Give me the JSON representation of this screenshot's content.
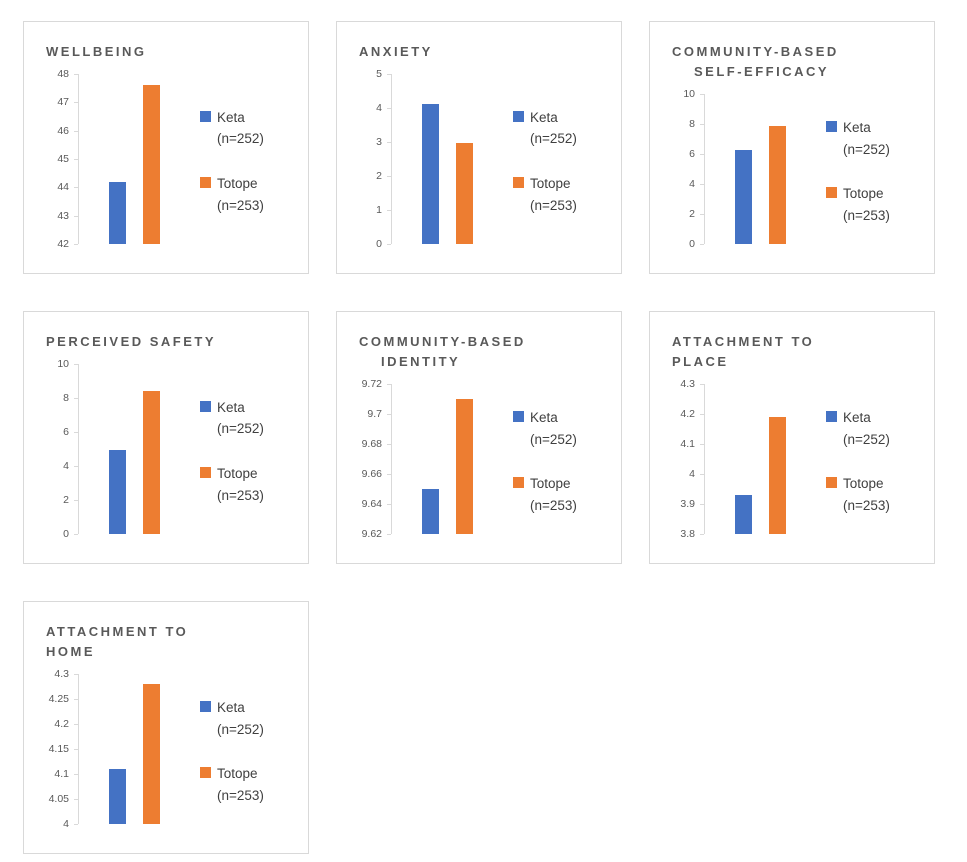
{
  "colors": {
    "keta_bar": "#4472C4",
    "totope_bar": "#ED7D31",
    "title_text": "#595959",
    "axis_text": "#595959",
    "axis_line": "#D9D9D9",
    "panel_border": "#D9D9D9",
    "legend_text": "#404040"
  },
  "legend": {
    "position": "right",
    "keta_name": "Keta",
    "keta_n": "(n=252)",
    "totope_name": "Totope",
    "totope_n": "(n=253)"
  },
  "chart_data": [
    {
      "id": "wellbeing",
      "type": "bar",
      "title": "WELLBEING",
      "title_lines": [
        "WELLBEING"
      ],
      "categories": [
        "Keta (n=252)",
        "Totope (n=253)"
      ],
      "values": [
        44.2,
        47.6
      ],
      "ylim": [
        42,
        48
      ],
      "yticks": [
        "48",
        "47",
        "46",
        "45",
        "44",
        "43",
        "42"
      ],
      "xlabel": "",
      "ylabel": "",
      "grid": false,
      "legend_position": "right"
    },
    {
      "id": "anxiety",
      "type": "bar",
      "title": "ANXIETY",
      "title_lines": [
        "ANXIETY"
      ],
      "categories": [
        "Keta (n=252)",
        "Totope (n=253)"
      ],
      "values": [
        4.13,
        2.97
      ],
      "ylim": [
        0,
        5
      ],
      "yticks": [
        "5",
        "4",
        "3",
        "2",
        "1",
        "0"
      ],
      "xlabel": "",
      "ylabel": "",
      "grid": false,
      "legend_position": "right"
    },
    {
      "id": "community-based-self-efficacy",
      "type": "bar",
      "title": "COMMUNITY-BASED SELF-EFFICACY",
      "title_lines": [
        "COMMUNITY-BASED",
        "SELF-EFFICACY"
      ],
      "title_indent2": true,
      "categories": [
        "Keta (n=252)",
        "Totope (n=253)"
      ],
      "values": [
        6.3,
        7.9
      ],
      "ylim": [
        0,
        10
      ],
      "yticks": [
        "10",
        "8",
        "6",
        "4",
        "2",
        "0"
      ],
      "xlabel": "",
      "ylabel": "",
      "grid": false,
      "legend_position": "right"
    },
    {
      "id": "perceived-safety",
      "type": "bar",
      "title": "PERCEIVED SAFETY",
      "title_lines": [
        "PERCEIVED SAFETY"
      ],
      "categories": [
        "Keta (n=252)",
        "Totope (n=253)"
      ],
      "values": [
        4.95,
        8.4
      ],
      "ylim": [
        0,
        10
      ],
      "yticks": [
        "10",
        "8",
        "6",
        "4",
        "2",
        "0"
      ],
      "xlabel": "",
      "ylabel": "",
      "grid": false,
      "legend_position": "right"
    },
    {
      "id": "community-based-identity",
      "type": "bar",
      "title": "COMMUNITY-BASED IDENTITY",
      "title_lines": [
        "COMMUNITY-BASED",
        "IDENTITY"
      ],
      "title_indent2": true,
      "categories": [
        "Keta (n=252)",
        "Totope (n=253)"
      ],
      "values": [
        9.65,
        9.71
      ],
      "ylim": [
        9.62,
        9.72
      ],
      "yticks": [
        "9.72",
        "9.7",
        "9.68",
        "9.66",
        "9.64",
        "9.62"
      ],
      "xlabel": "",
      "ylabel": "",
      "grid": false,
      "legend_position": "right"
    },
    {
      "id": "attachment-to-place",
      "type": "bar",
      "title": "ATTACHMENT TO PLACE",
      "title_lines": [
        "ATTACHMENT TO",
        "PLACE"
      ],
      "categories": [
        "Keta (n=252)",
        "Totope (n=253)"
      ],
      "values": [
        3.93,
        4.19
      ],
      "ylim": [
        3.8,
        4.3
      ],
      "yticks": [
        "4.3",
        "4.2",
        "4.1",
        "4",
        "3.9",
        "3.8"
      ],
      "xlabel": "",
      "ylabel": "",
      "grid": false,
      "legend_position": "right"
    },
    {
      "id": "attachment-to-home",
      "type": "bar",
      "title": "ATTACHMENT TO HOME",
      "title_lines": [
        "ATTACHMENT TO",
        "HOME"
      ],
      "categories": [
        "Keta (n=252)",
        "Totope (n=253)"
      ],
      "values": [
        4.11,
        4.28
      ],
      "ylim": [
        4,
        4.3
      ],
      "yticks": [
        "4.3",
        "4.25",
        "4.2",
        "4.15",
        "4.1",
        "4.05",
        "4"
      ],
      "xlabel": "",
      "ylabel": "",
      "grid": false,
      "legend_position": "right"
    }
  ]
}
